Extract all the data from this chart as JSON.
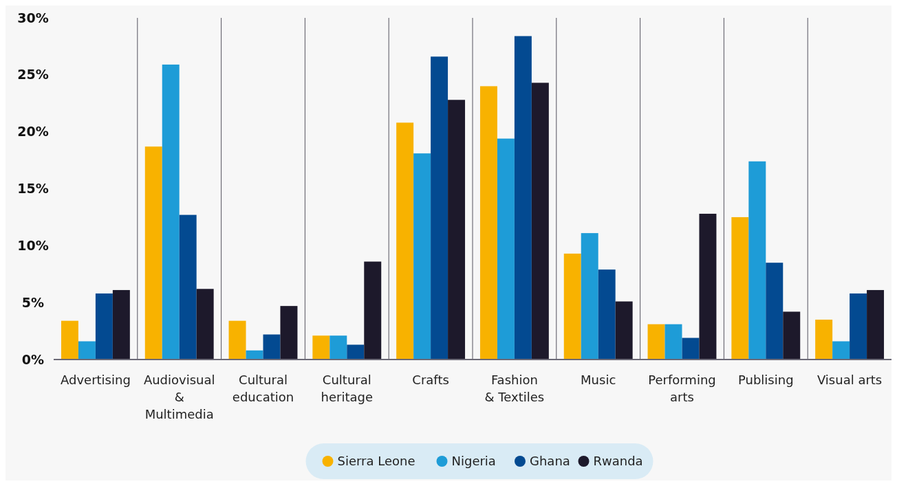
{
  "chart_data": {
    "type": "bar",
    "categories": [
      "Advertising",
      "Audiovisual & Multimedia",
      "Cultural education",
      "Cultural heritage",
      "Crafts",
      "Fashion & Textiles",
      "Music",
      "Performing arts",
      "Publising",
      "Visual arts"
    ],
    "series": [
      {
        "name": "Sierra Leone",
        "color": "#f8b200",
        "values": [
          3.4,
          18.7,
          3.4,
          2.1,
          20.8,
          24.0,
          9.3,
          3.1,
          12.5,
          3.5
        ]
      },
      {
        "name": "Nigeria",
        "color": "#1e9cd7",
        "values": [
          1.6,
          25.9,
          0.8,
          2.1,
          18.1,
          19.4,
          11.1,
          3.1,
          17.4,
          1.6
        ]
      },
      {
        "name": "Ghana",
        "color": "#034a91",
        "values": [
          5.8,
          12.7,
          2.2,
          1.3,
          26.6,
          28.4,
          7.9,
          1.9,
          8.5,
          5.8
        ]
      },
      {
        "name": "Rwanda",
        "color": "#1d192b",
        "values": [
          6.1,
          6.2,
          4.7,
          8.6,
          22.8,
          24.3,
          5.1,
          12.8,
          4.2,
          6.1
        ]
      }
    ],
    "ylim": [
      0,
      30
    ],
    "yticks": [
      {
        "value": 0,
        "label": "0%"
      },
      {
        "value": 5,
        "label": "5%"
      },
      {
        "value": 10,
        "label": "10%"
      },
      {
        "value": 15,
        "label": "15%"
      },
      {
        "value": 20,
        "label": "20%"
      },
      {
        "value": 25,
        "label": "25%"
      },
      {
        "value": 30,
        "label": "30%"
      }
    ],
    "grid": false,
    "legend": "bottom"
  }
}
